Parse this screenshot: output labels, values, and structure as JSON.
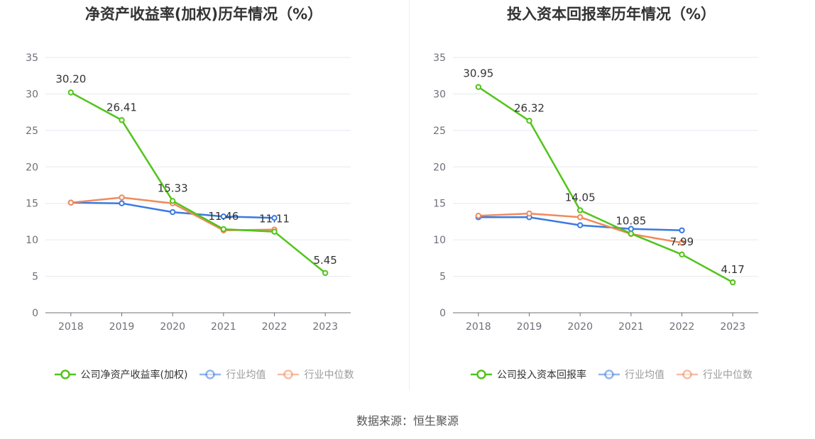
{
  "source_label": "数据来源：恒生聚源",
  "chart_data": [
    {
      "type": "line",
      "title": "净资产收益率(加权)历年情况（%）",
      "x": [
        "2018",
        "2019",
        "2020",
        "2021",
        "2022",
        "2023"
      ],
      "ylim": [
        0,
        35
      ],
      "yticks": [
        0,
        5,
        10,
        15,
        20,
        25,
        30,
        35
      ],
      "grid": true,
      "legend_position": "bottom",
      "series": [
        {
          "name": "公司净资产收益率(加权)",
          "values": [
            30.2,
            26.41,
            15.33,
            11.46,
            11.11,
            5.45
          ],
          "labels": [
            "30.20",
            "26.41",
            "15.33",
            "11.46",
            "11.11",
            "5.45"
          ],
          "color": "#52c41a",
          "active": true
        },
        {
          "name": "行业均值",
          "values": [
            15.1,
            15.0,
            13.8,
            13.2,
            13.0,
            null
          ],
          "color": "#3a7ae0",
          "active": false
        },
        {
          "name": "行业中位数",
          "values": [
            15.1,
            15.8,
            15.0,
            11.3,
            11.4,
            null
          ],
          "color": "#f08a5d",
          "active": false
        }
      ]
    },
    {
      "type": "line",
      "title": "投入资本回报率历年情况（%）",
      "x": [
        "2018",
        "2019",
        "2020",
        "2021",
        "2022",
        "2023"
      ],
      "ylim": [
        0,
        35
      ],
      "yticks": [
        0,
        5,
        10,
        15,
        20,
        25,
        30,
        35
      ],
      "grid": true,
      "legend_position": "bottom",
      "series": [
        {
          "name": "公司投入资本回报率",
          "values": [
            30.95,
            26.32,
            14.05,
            10.85,
            7.99,
            4.17
          ],
          "labels": [
            "30.95",
            "26.32",
            "14.05",
            "10.85",
            "7.99",
            "4.17"
          ],
          "color": "#52c41a",
          "active": true
        },
        {
          "name": "行业均值",
          "values": [
            13.1,
            13.1,
            12.0,
            11.5,
            11.3,
            null
          ],
          "color": "#3a7ae0",
          "active": false
        },
        {
          "name": "行业中位数",
          "values": [
            13.3,
            13.6,
            13.1,
            10.8,
            9.6,
            null
          ],
          "color": "#f08a5d",
          "active": false
        }
      ]
    }
  ]
}
